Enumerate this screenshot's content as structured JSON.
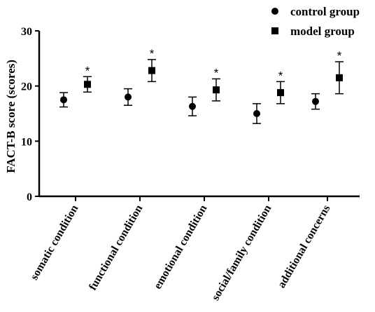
{
  "chart_data": {
    "type": "scatter",
    "ylabel": "FACT-B score (scores)",
    "xlabel": "",
    "ylim": [
      0,
      30
    ],
    "yticks": [
      0,
      10,
      20,
      30
    ],
    "categories": [
      "somatic condition",
      "functional condition",
      "emotional condition",
      "social/family condition",
      "additional concerns"
    ],
    "legend_position": "top-right",
    "series": [
      {
        "name": "control group",
        "marker": "circle",
        "color": "#000000",
        "values": [
          17.5,
          18.0,
          16.3,
          15.0,
          17.2
        ],
        "errors": [
          1.3,
          1.5,
          1.7,
          1.8,
          1.4
        ],
        "annotations": [
          "",
          "",
          "",
          "",
          ""
        ]
      },
      {
        "name": "model group",
        "marker": "square",
        "color": "#000000",
        "values": [
          20.3,
          22.8,
          19.3,
          18.8,
          21.5
        ],
        "errors": [
          1.4,
          2.0,
          2.0,
          2.0,
          2.9
        ],
        "annotations": [
          "*",
          "*",
          "*",
          "*",
          "*"
        ]
      }
    ],
    "grid": false
  }
}
